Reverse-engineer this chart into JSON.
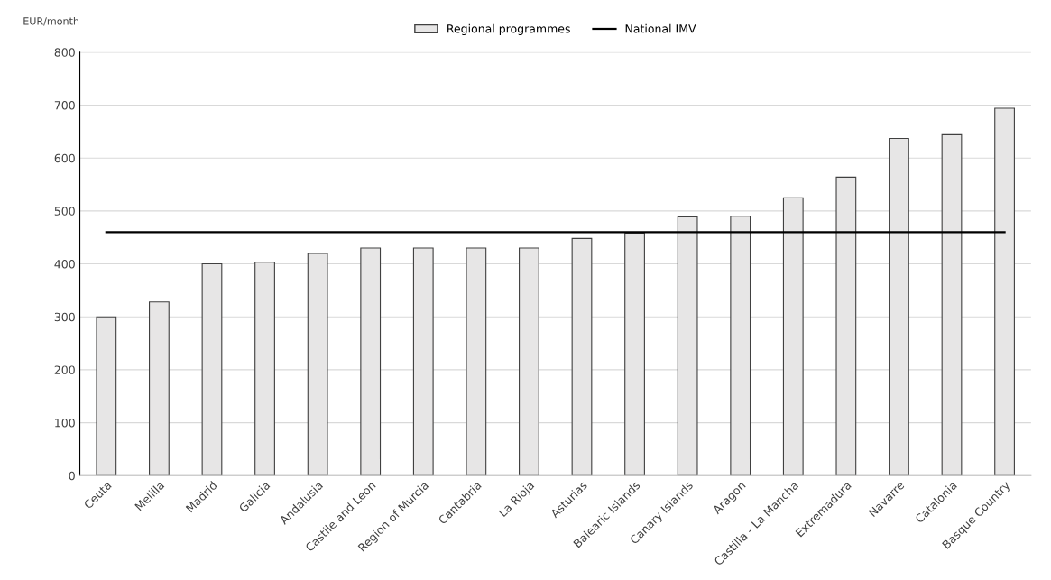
{
  "chart_data": {
    "type": "bar",
    "ylabel": "EUR/month",
    "categories": [
      "Ceuta",
      "Melilla",
      "Madrid",
      "Galicia",
      "Andalusia",
      "Castile and Leon",
      "Region of Murcia",
      "Cantabria",
      "La Rioja",
      "Asturias",
      "Balearic Islands",
      "Canary Islands",
      "Aragon",
      "Castilla - La Mancha",
      "Extremadura",
      "Navarre",
      "Catalonia",
      "Basque Country"
    ],
    "series": [
      {
        "name": "Regional programmes",
        "color": "#e7e6e6",
        "values": [
          300,
          328,
          400,
          403,
          420,
          430,
          430,
          430,
          430,
          448,
          458,
          489,
          490,
          525,
          564,
          637,
          644,
          694
        ]
      },
      {
        "name": "National IMV",
        "type": "line",
        "color": "#000000",
        "values": [
          460,
          460,
          460,
          460,
          460,
          460,
          460,
          460,
          460,
          460,
          460,
          460,
          460,
          460,
          460,
          460,
          460,
          460
        ]
      }
    ],
    "ylim": [
      0,
      800
    ],
    "yticks": [
      0,
      100,
      200,
      300,
      400,
      500,
      600,
      700,
      800
    ],
    "grid": "y",
    "legend": "top"
  }
}
